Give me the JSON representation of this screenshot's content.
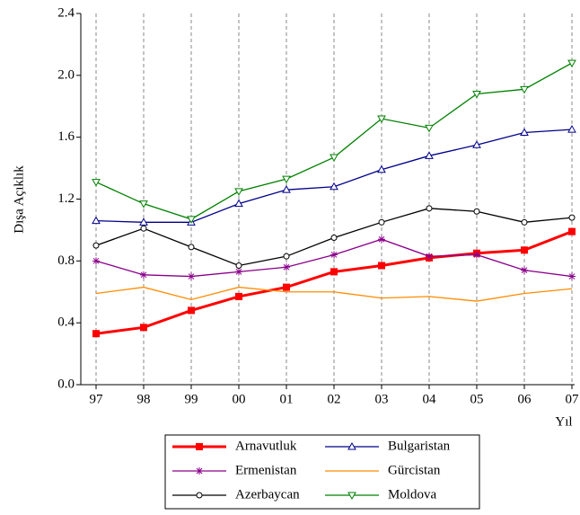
{
  "chart_data": {
    "type": "line",
    "x_label": "Yıl",
    "y_label": "Dışa Açıklık",
    "categories": [
      "97",
      "98",
      "99",
      "00",
      "01",
      "02",
      "03",
      "04",
      "05",
      "06",
      "07"
    ],
    "ylim": [
      0,
      2.4
    ],
    "yticks": [
      {
        "value": 0,
        "label": "0.0"
      },
      0.4,
      0.8,
      1.2,
      1.6,
      {
        "value": 2,
        "label": "2.0"
      },
      2.4
    ],
    "grid": "x",
    "series": [
      {
        "name": "Arnavutluk",
        "color": "#ff0000",
        "marker": "square",
        "values": [
          0.33,
          0.37,
          0.48,
          0.57,
          0.63,
          0.73,
          0.77,
          0.82,
          0.85,
          0.87,
          0.99
        ]
      },
      {
        "name": "Bulgaristan",
        "color": "#00008b",
        "marker": "triangle-up",
        "values": [
          1.06,
          1.05,
          1.05,
          1.17,
          1.26,
          1.28,
          1.39,
          1.48,
          1.55,
          1.63,
          1.65
        ]
      },
      {
        "name": "Ermenistan",
        "color": "#8b008b",
        "marker": "star",
        "values": [
          0.8,
          0.71,
          0.7,
          0.73,
          0.76,
          0.84,
          0.94,
          0.83,
          0.84,
          0.74,
          0.7
        ]
      },
      {
        "name": "Gürcistan",
        "color": "#ff8c00",
        "marker": "none",
        "values": [
          0.59,
          0.63,
          0.55,
          0.63,
          0.6,
          0.6,
          0.56,
          0.57,
          0.54,
          0.59,
          0.62
        ]
      },
      {
        "name": "Azerbaycan",
        "color": "#000000",
        "marker": "circle",
        "values": [
          0.9,
          1.01,
          0.89,
          0.77,
          0.83,
          0.95,
          1.05,
          1.14,
          1.12,
          1.05,
          1.08
        ]
      },
      {
        "name": "Moldova",
        "color": "#008000",
        "marker": "triangle-down",
        "values": [
          1.31,
          1.17,
          1.07,
          1.25,
          1.33,
          1.47,
          1.72,
          1.66,
          1.88,
          1.91,
          2.08
        ]
      }
    ]
  }
}
